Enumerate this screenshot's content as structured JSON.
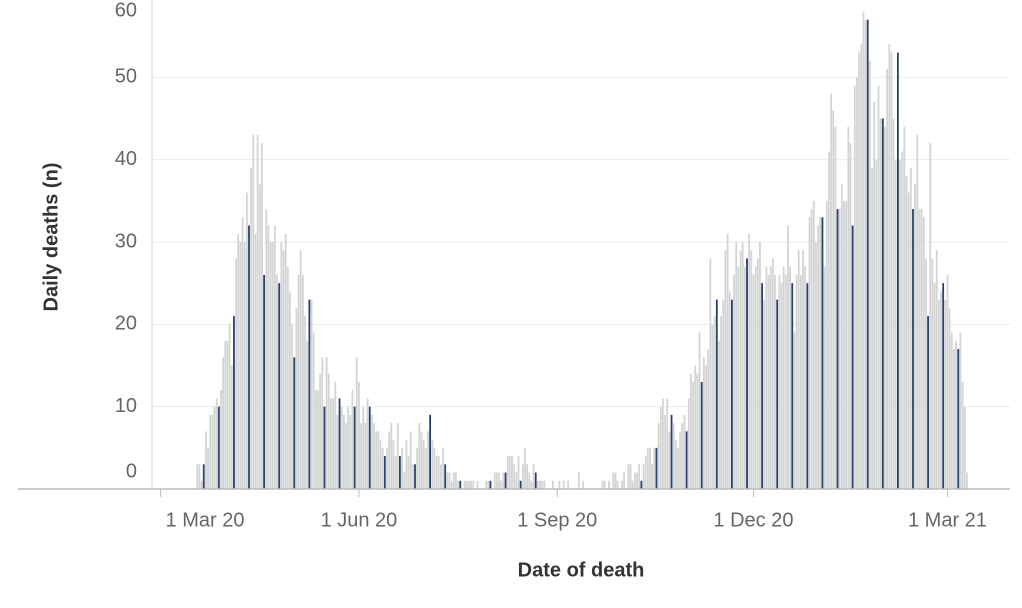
{
  "chart_data": {
    "type": "bar",
    "x_label": "Date of death",
    "y_label": "Daily deaths (n)",
    "color": "#d4d4d4",
    "highlight_color": "#2b3f6e",
    "highlight_weekday": "Saturday",
    "grid": true,
    "xlim": [
      "2020-02-26",
      "2021-03-30"
    ],
    "xticks": [
      {
        "value": "2020-03-01",
        "label": "1 Mar 20"
      },
      {
        "value": "2020-06-01",
        "label": "1 Jun 20"
      },
      {
        "value": "2020-09-01",
        "label": "1 Sep 20"
      },
      {
        "value": "2020-12-01",
        "label": "1 Dec 20"
      },
      {
        "value": "2021-03-01",
        "label": "1 Mar 21"
      }
    ],
    "ylim": [
      0,
      60
    ],
    "yticks": [
      0,
      10,
      20,
      30,
      40,
      50,
      60
    ],
    "x": [
      "2020-03-18",
      "2020-03-19",
      "2020-03-20",
      "2020-03-21",
      "2020-03-22",
      "2020-03-23",
      "2020-03-24",
      "2020-03-25",
      "2020-03-26",
      "2020-03-27",
      "2020-03-28",
      "2020-03-29",
      "2020-03-30",
      "2020-03-31",
      "2020-04-01",
      "2020-04-02",
      "2020-04-03",
      "2020-04-04",
      "2020-04-05",
      "2020-04-06",
      "2020-04-07",
      "2020-04-08",
      "2020-04-09",
      "2020-04-10",
      "2020-04-11",
      "2020-04-12",
      "2020-04-13",
      "2020-04-14",
      "2020-04-15",
      "2020-04-16",
      "2020-04-17",
      "2020-04-18",
      "2020-04-19",
      "2020-04-20",
      "2020-04-21",
      "2020-04-22",
      "2020-04-23",
      "2020-04-24",
      "2020-04-25",
      "2020-04-26",
      "2020-04-27",
      "2020-04-28",
      "2020-04-29",
      "2020-04-30",
      "2020-05-01",
      "2020-05-02",
      "2020-05-03",
      "2020-05-04",
      "2020-05-05",
      "2020-05-06",
      "2020-05-07",
      "2020-05-08",
      "2020-05-09",
      "2020-05-10",
      "2020-05-11",
      "2020-05-12",
      "2020-05-13",
      "2020-05-14",
      "2020-05-15",
      "2020-05-16",
      "2020-05-17",
      "2020-05-18",
      "2020-05-19",
      "2020-05-20",
      "2020-05-21",
      "2020-05-22",
      "2020-05-23",
      "2020-05-24",
      "2020-05-25",
      "2020-05-26",
      "2020-05-27",
      "2020-05-28",
      "2020-05-29",
      "2020-05-30",
      "2020-05-31",
      "2020-06-01",
      "2020-06-02",
      "2020-06-03",
      "2020-06-04",
      "2020-06-05",
      "2020-06-06",
      "2020-06-07",
      "2020-06-08",
      "2020-06-09",
      "2020-06-10",
      "2020-06-11",
      "2020-06-12",
      "2020-06-13",
      "2020-06-14",
      "2020-06-15",
      "2020-06-16",
      "2020-06-17",
      "2020-06-18",
      "2020-06-19",
      "2020-06-20",
      "2020-06-21",
      "2020-06-22",
      "2020-06-23",
      "2020-06-24",
      "2020-06-25",
      "2020-06-26",
      "2020-06-27",
      "2020-06-28",
      "2020-06-29",
      "2020-06-30",
      "2020-07-01",
      "2020-07-02",
      "2020-07-03",
      "2020-07-04",
      "2020-07-05",
      "2020-07-06",
      "2020-07-07",
      "2020-07-08",
      "2020-07-09",
      "2020-07-10",
      "2020-07-11",
      "2020-07-12",
      "2020-07-13",
      "2020-07-14",
      "2020-07-15",
      "2020-07-16",
      "2020-07-17",
      "2020-07-18",
      "2020-07-19",
      "2020-07-20",
      "2020-07-21",
      "2020-07-22",
      "2020-07-23",
      "2020-07-24",
      "2020-07-25",
      "2020-07-26",
      "2020-07-27",
      "2020-07-28",
      "2020-07-29",
      "2020-07-30",
      "2020-07-31",
      "2020-08-01",
      "2020-08-02",
      "2020-08-03",
      "2020-08-04",
      "2020-08-05",
      "2020-08-06",
      "2020-08-07",
      "2020-08-08",
      "2020-08-09",
      "2020-08-10",
      "2020-08-11",
      "2020-08-12",
      "2020-08-13",
      "2020-08-14",
      "2020-08-15",
      "2020-08-16",
      "2020-08-17",
      "2020-08-18",
      "2020-08-19",
      "2020-08-20",
      "2020-08-21",
      "2020-08-22",
      "2020-08-23",
      "2020-08-24",
      "2020-08-25",
      "2020-08-26",
      "2020-08-27",
      "2020-08-28",
      "2020-08-29",
      "2020-08-30",
      "2020-08-31",
      "2020-09-01",
      "2020-09-02",
      "2020-09-03",
      "2020-09-04",
      "2020-09-05",
      "2020-09-06",
      "2020-09-07",
      "2020-09-08",
      "2020-09-09",
      "2020-09-10",
      "2020-09-11",
      "2020-09-12",
      "2020-09-13",
      "2020-09-14",
      "2020-09-15",
      "2020-09-16",
      "2020-09-17",
      "2020-09-18",
      "2020-09-19",
      "2020-09-20",
      "2020-09-21",
      "2020-09-22",
      "2020-09-23",
      "2020-09-24",
      "2020-09-25",
      "2020-09-26",
      "2020-09-27",
      "2020-09-28",
      "2020-09-29",
      "2020-09-30",
      "2020-10-01",
      "2020-10-02",
      "2020-10-03",
      "2020-10-04",
      "2020-10-05",
      "2020-10-06",
      "2020-10-07",
      "2020-10-08",
      "2020-10-09",
      "2020-10-10",
      "2020-10-11",
      "2020-10-12",
      "2020-10-13",
      "2020-10-14",
      "2020-10-15",
      "2020-10-16",
      "2020-10-17",
      "2020-10-18",
      "2020-10-19",
      "2020-10-20",
      "2020-10-21",
      "2020-10-22",
      "2020-10-23",
      "2020-10-24",
      "2020-10-25",
      "2020-10-26",
      "2020-10-27",
      "2020-10-28",
      "2020-10-29",
      "2020-10-30",
      "2020-10-31",
      "2020-11-01",
      "2020-11-02",
      "2020-11-03",
      "2020-11-04",
      "2020-11-05",
      "2020-11-06",
      "2020-11-07",
      "2020-11-08",
      "2020-11-09",
      "2020-11-10",
      "2020-11-11",
      "2020-11-12",
      "2020-11-13",
      "2020-11-14",
      "2020-11-15",
      "2020-11-16",
      "2020-11-17",
      "2020-11-18",
      "2020-11-19",
      "2020-11-20",
      "2020-11-21",
      "2020-11-22",
      "2020-11-23",
      "2020-11-24",
      "2020-11-25",
      "2020-11-26",
      "2020-11-27",
      "2020-11-28",
      "2020-11-29",
      "2020-11-30",
      "2020-12-01",
      "2020-12-02",
      "2020-12-03",
      "2020-12-04",
      "2020-12-05",
      "2020-12-06",
      "2020-12-07",
      "2020-12-08",
      "2020-12-09",
      "2020-12-10",
      "2020-12-11",
      "2020-12-12",
      "2020-12-13",
      "2020-12-14",
      "2020-12-15",
      "2020-12-16",
      "2020-12-17",
      "2020-12-18",
      "2020-12-19",
      "2020-12-20",
      "2020-12-21",
      "2020-12-22",
      "2020-12-23",
      "2020-12-24",
      "2020-12-25",
      "2020-12-26",
      "2020-12-27",
      "2020-12-28",
      "2020-12-29",
      "2020-12-30",
      "2020-12-31",
      "2021-01-01",
      "2021-01-02",
      "2021-01-03",
      "2021-01-04",
      "2021-01-05",
      "2021-01-06",
      "2021-01-07",
      "2021-01-08",
      "2021-01-09",
      "2021-01-10",
      "2021-01-11",
      "2021-01-12",
      "2021-01-13",
      "2021-01-14",
      "2021-01-15",
      "2021-01-16",
      "2021-01-17",
      "2021-01-18",
      "2021-01-19",
      "2021-01-20",
      "2021-01-21",
      "2021-01-22",
      "2021-01-23",
      "2021-01-24",
      "2021-01-25",
      "2021-01-26",
      "2021-01-27",
      "2021-01-28",
      "2021-01-29",
      "2021-01-30",
      "2021-01-31",
      "2021-02-01",
      "2021-02-02",
      "2021-02-03",
      "2021-02-04",
      "2021-02-05",
      "2021-02-06",
      "2021-02-07",
      "2021-02-08",
      "2021-02-09",
      "2021-02-10",
      "2021-02-11",
      "2021-02-12",
      "2021-02-13",
      "2021-02-14",
      "2021-02-15",
      "2021-02-16",
      "2021-02-17",
      "2021-02-18",
      "2021-02-19",
      "2021-02-20",
      "2021-02-21",
      "2021-02-22",
      "2021-02-23",
      "2021-02-24",
      "2021-02-25",
      "2021-02-26",
      "2021-02-27",
      "2021-02-28",
      "2021-03-01",
      "2021-03-02",
      "2021-03-03",
      "2021-03-04",
      "2021-03-05",
      "2021-03-06",
      "2021-03-07",
      "2021-03-08",
      "2021-03-09",
      "2021-03-10"
    ],
    "values": [
      3,
      3,
      1,
      3,
      7,
      5,
      9,
      9,
      10,
      11,
      10,
      12,
      16,
      18,
      18,
      20,
      15,
      21,
      28,
      31,
      30,
      33,
      30,
      36,
      32,
      39,
      43,
      31,
      43,
      37,
      42,
      26,
      34,
      32,
      30,
      30,
      32,
      26,
      25,
      30,
      29,
      31,
      27,
      24,
      20,
      16,
      22,
      26,
      29,
      26,
      21,
      18,
      23,
      23,
      19,
      12,
      12,
      14,
      16,
      10,
      16,
      14,
      11,
      11,
      13,
      9,
      11,
      10,
      9,
      8,
      10,
      9,
      12,
      10,
      16,
      13,
      8,
      10,
      8,
      11,
      10,
      9,
      8,
      7,
      7,
      6,
      5,
      4,
      5,
      7,
      8,
      6,
      4,
      8,
      4,
      5,
      2,
      6,
      4,
      7,
      3,
      3,
      5,
      8,
      7,
      6,
      5,
      7,
      9,
      6,
      5,
      4,
      4,
      3,
      5,
      3,
      2,
      2,
      1,
      2,
      2,
      1,
      1,
      0,
      1,
      1,
      1,
      1,
      1,
      0,
      1,
      0,
      0,
      0,
      1,
      1,
      1,
      0,
      2,
      2,
      2,
      1,
      2,
      2,
      4,
      4,
      4,
      3,
      2,
      4,
      1,
      3,
      5,
      3,
      2,
      1,
      3,
      2,
      1,
      1,
      1,
      1,
      0,
      0,
      0,
      1,
      0,
      0,
      1,
      0,
      1,
      0,
      1,
      0,
      0,
      0,
      0,
      2,
      0,
      1,
      0,
      0,
      0,
      0,
      0,
      0,
      0,
      0,
      1,
      1,
      0,
      1,
      0,
      2,
      2,
      1,
      0,
      1,
      2,
      0,
      3,
      3,
      1,
      2,
      2,
      3,
      1,
      3,
      4,
      5,
      5,
      3,
      5,
      5,
      8,
      10,
      11,
      9,
      11,
      7,
      9,
      8,
      6,
      5,
      7,
      8,
      9,
      7,
      11,
      14,
      13,
      15,
      14,
      19,
      13,
      16,
      15,
      17,
      28,
      20,
      21,
      23,
      18,
      21,
      23,
      29,
      31,
      24,
      23,
      26,
      30,
      27,
      29,
      30,
      27,
      28,
      31,
      29,
      26,
      27,
      28,
      30,
      25,
      23,
      27,
      26,
      27,
      28,
      26,
      23,
      26,
      25,
      27,
      26,
      32,
      27,
      25,
      19,
      26,
      29,
      26,
      29,
      27,
      25,
      33,
      34,
      35,
      30,
      32,
      33,
      33,
      27,
      35,
      41,
      48,
      46,
      44,
      34,
      34,
      37,
      35,
      35,
      44,
      42,
      32,
      49,
      50,
      53,
      54,
      58,
      57,
      57,
      52,
      39,
      47,
      40,
      49,
      45,
      45,
      44,
      51,
      54,
      53,
      45,
      40,
      53,
      40,
      41,
      44,
      38,
      36,
      39,
      34,
      37,
      43,
      34,
      34,
      33,
      28,
      21,
      42,
      28,
      25,
      29,
      23,
      24,
      25,
      23,
      26,
      22,
      19,
      17,
      18,
      17,
      19,
      13,
      10,
      2
    ]
  }
}
